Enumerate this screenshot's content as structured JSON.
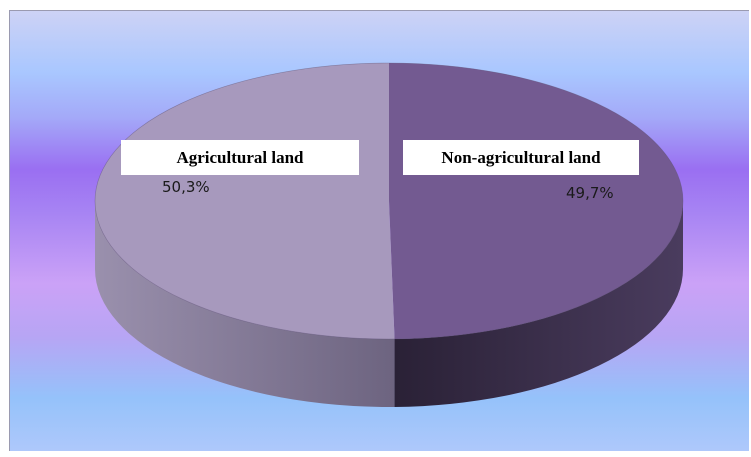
{
  "chart_data": {
    "type": "pie",
    "title": "",
    "categories": [
      "Agricultural land",
      "Non-agricultural land"
    ],
    "values": [
      50.3,
      49.7
    ],
    "value_labels": [
      "50,3%",
      "49,7%"
    ],
    "series": [
      {
        "values": [
          50.3,
          49.7
        ]
      }
    ],
    "colors": [
      "#a799bd",
      "#735a91"
    ],
    "side_colors": [
      "#7e7593",
      "#372c48"
    ],
    "legend": "none",
    "style": "3d"
  }
}
